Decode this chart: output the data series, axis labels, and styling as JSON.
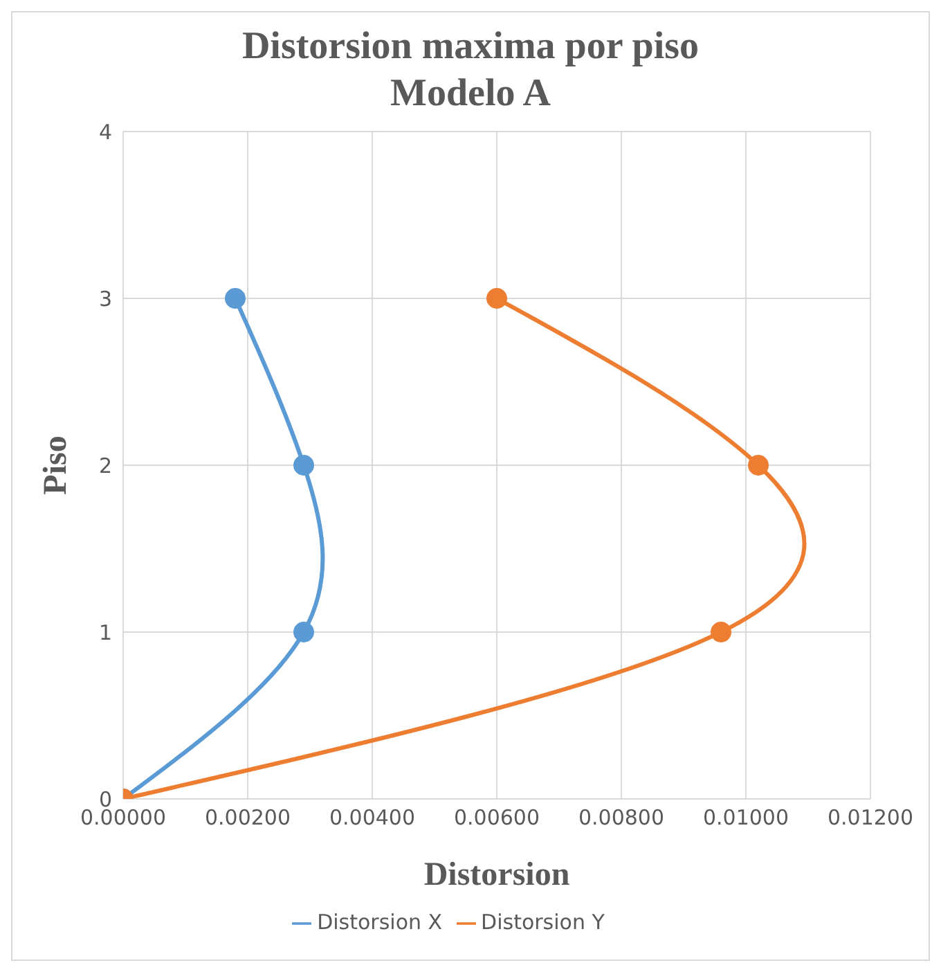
{
  "chart_data": {
    "type": "line",
    "title": "Distorsion maxima por piso\nModelo A",
    "xlabel": "Distorsion",
    "ylabel": "Piso",
    "x": [
      0,
      1,
      2,
      3
    ],
    "series": [
      {
        "name": "Distorsion X",
        "color": "#5b9bd5",
        "values": [
          0,
          0.0029,
          0.0029,
          0.0018
        ]
      },
      {
        "name": "Distorsion Y",
        "color": "#ed7d31",
        "values": [
          0,
          0.0096,
          0.0102,
          0.006
        ]
      }
    ],
    "orientation": "horizontal",
    "xlim": [
      0,
      0.012
    ],
    "xticks": [
      {
        "value": 0,
        "label": "0.00000"
      },
      {
        "value": 0.002,
        "label": "0.00200"
      },
      {
        "value": 0.004,
        "label": "0.00400"
      },
      {
        "value": 0.006,
        "label": "0.00600"
      },
      {
        "value": 0.008,
        "label": "0.00800"
      },
      {
        "value": 0.01,
        "label": "0.01000"
      },
      {
        "value": 0.012,
        "label": "0.01200"
      }
    ],
    "ylim": [
      0,
      4
    ],
    "yticks": [
      0,
      1,
      2,
      3,
      4
    ],
    "grid": true,
    "legend": "bottom",
    "marker": "circle",
    "line_style": "solid"
  }
}
